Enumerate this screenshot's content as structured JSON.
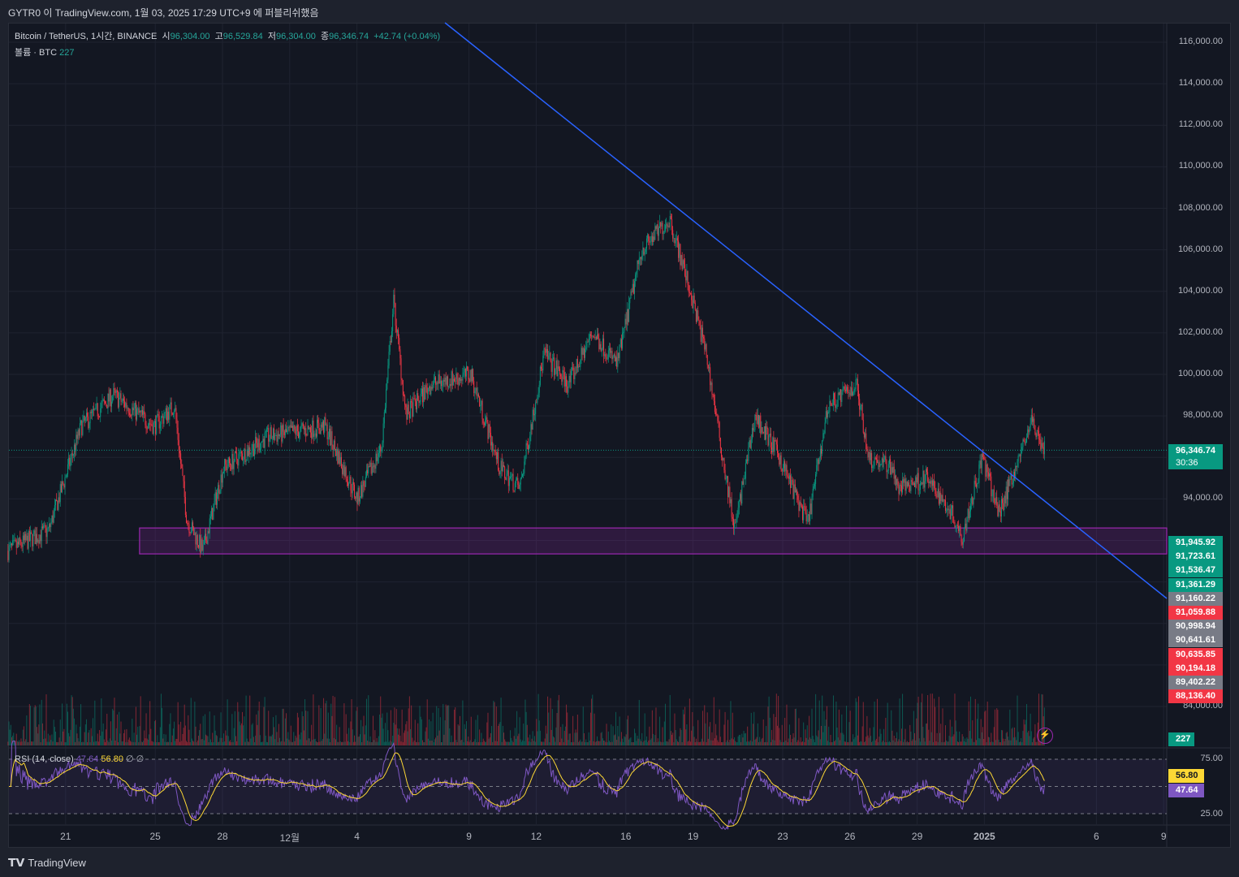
{
  "header": {
    "published": "GYTR0 이 TradingView.com, 1월 03, 2025 17:29 UTC+9 에 퍼블리쉬했음"
  },
  "legend": {
    "symbol": "Bitcoin / TetherUS, 1시간, BINANCE",
    "o_label": "시",
    "open": "96,304.00",
    "h_label": "고",
    "high": "96,529.84",
    "l_label": "저",
    "low": "96,304.00",
    "c_label": "종",
    "close": "96,346.74",
    "change": "+42.74 (+0.04%)",
    "volume_label": "볼륨 · BTC",
    "volume": "227"
  },
  "rsi_legend": {
    "label": "RSI (14, close)",
    "rsi": "47.64",
    "ma": "56.80",
    "x1": "∅",
    "x2": "∅"
  },
  "price_axis": [
    "116,000.00",
    "114,000.00",
    "112,000.00",
    "110,000.00",
    "108,000.00",
    "106,000.00",
    "104,000.00",
    "102,000.00",
    "100,000.00",
    "98,000.00",
    "94,000.00",
    "84,000.00"
  ],
  "current_price": {
    "price": "96,346.74",
    "countdown": "30:36"
  },
  "price_tags": [
    {
      "text": "91,945.92",
      "color": "#089981"
    },
    {
      "text": "91,723.61",
      "color": "#089981"
    },
    {
      "text": "91,536.47",
      "color": "#089981"
    },
    {
      "text": "91,361.29",
      "color": "#089981"
    },
    {
      "text": "91,160.22",
      "color": "#787b86"
    },
    {
      "text": "91,059.88",
      "color": "#f23645"
    },
    {
      "text": "90,998.94",
      "color": "#787b86"
    },
    {
      "text": "90,641.61",
      "color": "#787b86"
    },
    {
      "text": "90,635.85",
      "color": "#f23645"
    },
    {
      "text": "90,194.18",
      "color": "#f23645"
    },
    {
      "text": "89,402.22",
      "color": "#787b86"
    },
    {
      "text": "88,136.40",
      "color": "#f23645"
    }
  ],
  "volume_tag": "227",
  "rsi_axis": {
    "upper": "75.00",
    "lower": "25.00",
    "ma": "56.80",
    "rsi": "47.64"
  },
  "time_axis": [
    {
      "t": 3,
      "label": "21"
    },
    {
      "t": 7,
      "label": "25"
    },
    {
      "t": 10,
      "label": "28"
    },
    {
      "t": 13,
      "label": "12월"
    },
    {
      "t": 16,
      "label": "4"
    },
    {
      "t": 21,
      "label": "9"
    },
    {
      "t": 24,
      "label": "12"
    },
    {
      "t": 28,
      "label": "16"
    },
    {
      "t": 31,
      "label": "19"
    },
    {
      "t": 35,
      "label": "23"
    },
    {
      "t": 38,
      "label": "26"
    },
    {
      "t": 41,
      "label": "29"
    },
    {
      "t": 44,
      "label": "2025"
    },
    {
      "t": 49,
      "label": "6"
    },
    {
      "t": 52,
      "label": "9"
    }
  ],
  "footer": "TradingView",
  "colors": {
    "up": "#089981",
    "down": "#f23645",
    "trendline": "#2962ff",
    "zone": "#9c27b0",
    "rsi": "#7e57c2",
    "rsi_ma": "#fdd835"
  },
  "chart_data": {
    "type": "candlestick",
    "title": "Bitcoin / TetherUS, 1h, BINANCE",
    "x_unit": "days since Nov 18 2024",
    "ylim": [
      84000,
      116000
    ],
    "price_path": [
      [
        0.43,
        91500
      ],
      [
        2.25,
        92500
      ],
      [
        3.7,
        97500
      ],
      [
        5.14,
        99000
      ],
      [
        6.96,
        97500
      ],
      [
        7.86,
        98500
      ],
      [
        8.41,
        93000
      ],
      [
        9.13,
        91500
      ],
      [
        10.04,
        95500
      ],
      [
        12.03,
        97000
      ],
      [
        14.57,
        97500
      ],
      [
        16.01,
        94000
      ],
      [
        17.1,
        96500
      ],
      [
        17.64,
        103500
      ],
      [
        18.19,
        98000
      ],
      [
        19.28,
        99500
      ],
      [
        21.09,
        100000
      ],
      [
        22.36,
        95500
      ],
      [
        23.26,
        94500
      ],
      [
        24.35,
        101000
      ],
      [
        25.43,
        99500
      ],
      [
        26.52,
        102000
      ],
      [
        27.61,
        100500
      ],
      [
        28.7,
        106000
      ],
      [
        29.96,
        107500
      ],
      [
        30.87,
        104000
      ],
      [
        31.59,
        101000
      ],
      [
        32.32,
        96000
      ],
      [
        32.86,
        92500
      ],
      [
        33.77,
        98000
      ],
      [
        34.86,
        96000
      ],
      [
        36.12,
        92800
      ],
      [
        37.03,
        98500
      ],
      [
        38.3,
        99500
      ],
      [
        38.84,
        96000
      ],
      [
        39.93,
        95500
      ],
      [
        40.11,
        94500
      ],
      [
        41.38,
        95000
      ],
      [
        42.46,
        93500
      ],
      [
        43.01,
        92200
      ],
      [
        43.91,
        96000
      ],
      [
        44.64,
        93300
      ],
      [
        45.72,
        96500
      ],
      [
        46.09,
        97800
      ],
      [
        46.7,
        96346.74
      ]
    ],
    "trendline": {
      "start": [
        19.93,
        116939
      ],
      "end": [
        52.14,
        89203
      ]
    },
    "support_zone": {
      "t_start": 6.3,
      "top": 92600,
      "bottom": 91350
    },
    "rsi": {
      "upper": 75,
      "lower": 25,
      "mid": 50,
      "last": 47.64,
      "ma_last": 56.8
    }
  }
}
